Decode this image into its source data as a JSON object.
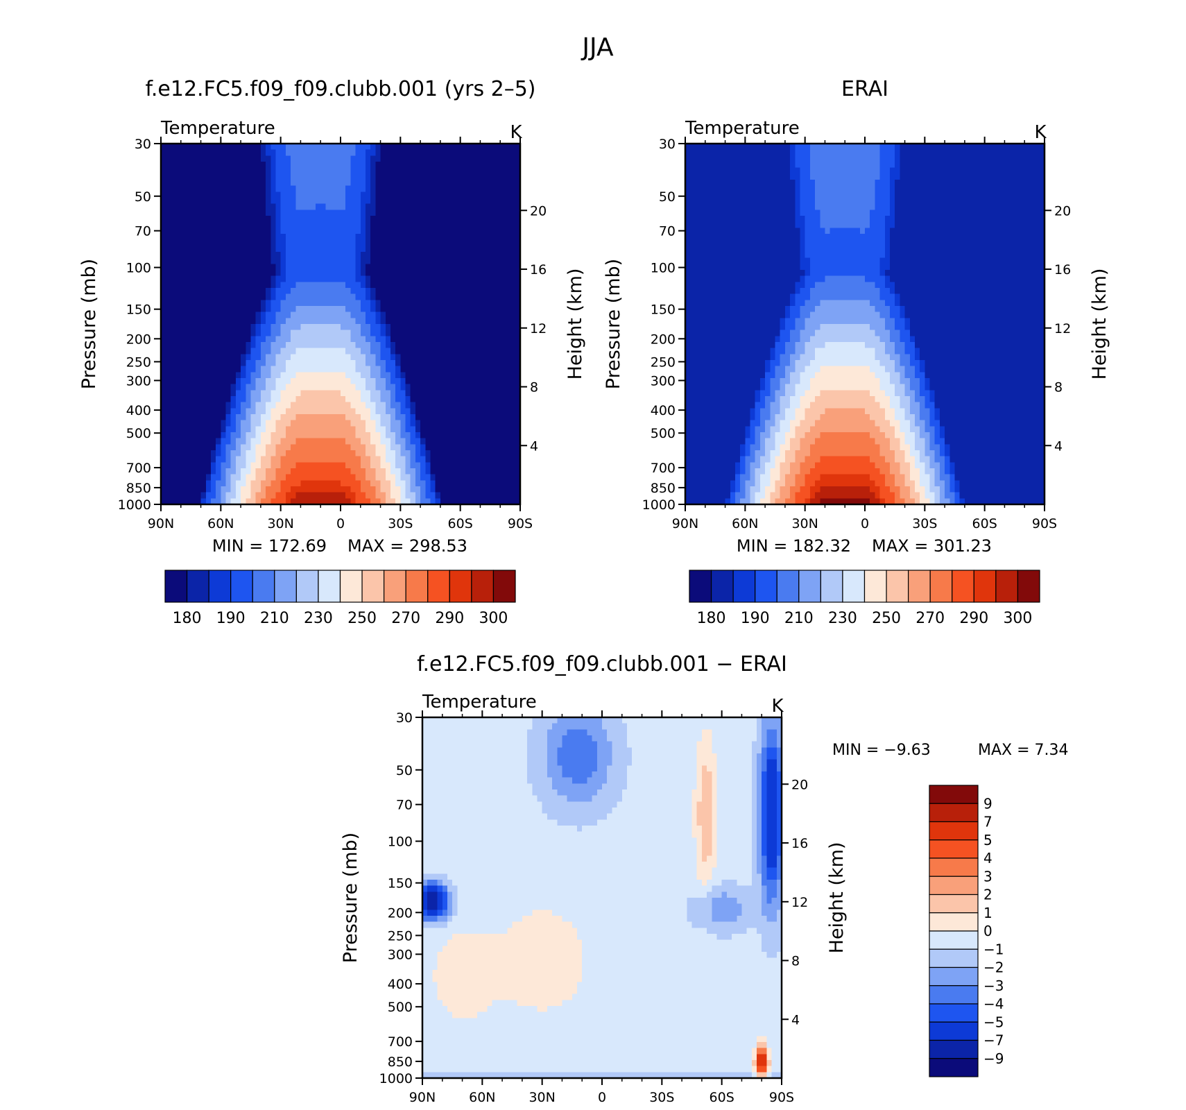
{
  "page": {
    "season": "JJA"
  },
  "palettes": {
    "abs": [
      "#0b0b7a",
      "#0b24a8",
      "#0d3ad6",
      "#1e55f0",
      "#4a7bf0",
      "#7ea3f5",
      "#b1c9f8",
      "#d8e8fc",
      "#fde8d8",
      "#fbc5aa",
      "#f9a07a",
      "#f77a4a",
      "#f55222",
      "#e0350c",
      "#b8200a",
      "#820a0a"
    ],
    "diff": [
      "#0b0b7a",
      "#0b24a8",
      "#0d3ad6",
      "#1e55f0",
      "#4a7bf0",
      "#7ea3f5",
      "#b1c9f8",
      "#d8e8fc",
      "#fde8d8",
      "#fbc5aa",
      "#f9a07a",
      "#f77a4a",
      "#f55222",
      "#e0350c",
      "#b8200a",
      "#820a0a"
    ]
  },
  "chart_data": [
    {
      "type": "heatmap",
      "title": "f.e12.FC5.f09_f09.clubb.001 (yrs 2–5)",
      "subtitle": "Temperature",
      "units": "K",
      "ylabel": "Pressure (mb)",
      "ylabel_right": "Height (km)",
      "x_ticks": [
        "90N",
        "60N",
        "30N",
        "0",
        "30S",
        "60S",
        "90S"
      ],
      "y_ticks": [
        "30",
        "50",
        "70",
        "100",
        "150",
        "200",
        "250",
        "300",
        "400",
        "500",
        "700",
        "850",
        "1000"
      ],
      "y_right_ticks": [
        "20",
        "16",
        "12",
        "8",
        "4"
      ],
      "min_label": "MIN = 172.69",
      "max_label": "MAX = 298.53",
      "min": 172.69,
      "max": 298.53,
      "colorbar_labels": [
        "180",
        "190",
        "210",
        "230",
        "250",
        "270",
        "290",
        "300"
      ]
    },
    {
      "type": "heatmap",
      "title": "ERAI",
      "subtitle": "Temperature",
      "units": "K",
      "ylabel": "Pressure (mb)",
      "ylabel_right": "Height (km)",
      "x_ticks": [
        "90N",
        "60N",
        "30N",
        "0",
        "30S",
        "60S",
        "90S"
      ],
      "y_ticks": [
        "30",
        "50",
        "70",
        "100",
        "150",
        "200",
        "250",
        "300",
        "400",
        "500",
        "700",
        "850",
        "1000"
      ],
      "y_right_ticks": [
        "20",
        "16",
        "12",
        "8",
        "4"
      ],
      "min_label": "MIN = 182.32",
      "max_label": "MAX = 301.23",
      "min": 182.32,
      "max": 301.23,
      "colorbar_labels": [
        "180",
        "190",
        "210",
        "230",
        "250",
        "270",
        "290",
        "300"
      ]
    },
    {
      "type": "heatmap",
      "title": "f.e12.FC5.f09_f09.clubb.001 − ERAI",
      "subtitle": "Temperature",
      "units": "K",
      "ylabel": "Pressure (mb)",
      "ylabel_right": "Height (km)",
      "x_ticks": [
        "90N",
        "60N",
        "30N",
        "0",
        "30S",
        "60S",
        "90S"
      ],
      "y_ticks": [
        "30",
        "50",
        "70",
        "100",
        "150",
        "200",
        "250",
        "300",
        "400",
        "500",
        "700",
        "850",
        "1000"
      ],
      "y_right_ticks": [
        "20",
        "16",
        "12",
        "8",
        "4"
      ],
      "min_label": "MIN =  −9.63",
      "max_label": "MAX =   7.34",
      "min": -9.63,
      "max": 7.34,
      "colorbar_labels": [
        "9",
        "7",
        "5",
        "4",
        "3",
        "2",
        "1",
        "0",
        "−1",
        "−2",
        "−3",
        "−4",
        "−5",
        "−7",
        "−9"
      ]
    }
  ]
}
